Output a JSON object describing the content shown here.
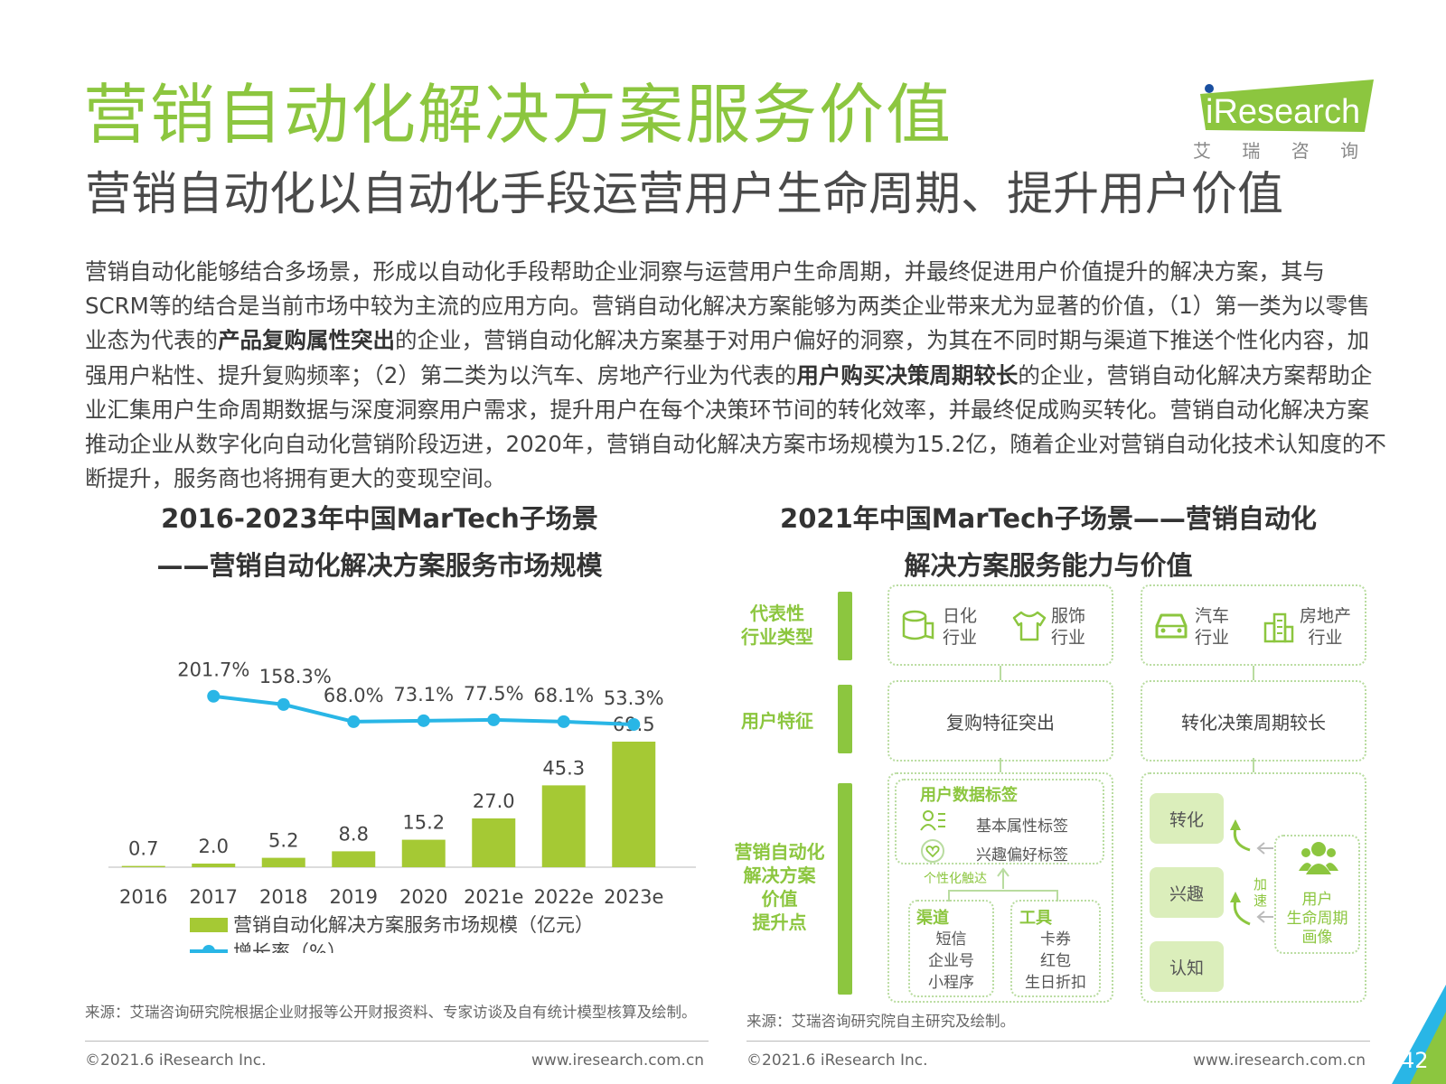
{
  "page": {
    "title": "营销自动化解决方案服务价值",
    "subtitle": "营销自动化以自动化手段运营用户生命周期、提升用户价值",
    "page_number": "42"
  },
  "logo": {
    "brand": "iResearch",
    "cn": "艾 瑞 咨 询"
  },
  "body": {
    "p1": "营销自动化能够结合多场景，形成以自动化手段帮助企业洞察与运营用户生命周期，并最终促进用户价值提升的解决方案，其与SCRM等的结合是当前市场中较为主流的应用方向。营销自动化解决方案能够为两类企业带来尤为显著的价值，（1）第一类为以零售业态为代表的",
    "b1": "产品复购属性突出",
    "p2": "的企业，营销自动化解决方案基于对用户偏好的洞察，为其在不同时期与渠道下推送个性化内容，加强用户粘性、提升复购频率；（2）第二类为以汽车、房地产行业为代表的",
    "b2": "用户购买决策周期较长",
    "p3": "的企业，营销自动化解决方案帮助企业汇集用户生命周期数据与深度洞察用户需求，提升用户在每个决策环节间的转化效率，并最终促成购买转化。营销自动化解决方案推动企业从数字化向自动化营销阶段迈进，2020年，营销自动化解决方案市场规模为15.2亿，随着企业对营销自动化技术认知度的不断提升，服务商也将拥有更大的变现空间。"
  },
  "chart_data": {
    "type": "bar",
    "title_line1": "2016-2023年中国MarTech子场景",
    "title_line2": "——营销自动化解决方案服务市场规模",
    "categories": [
      "2016",
      "2017",
      "2018",
      "2019",
      "2020",
      "2021e",
      "2022e",
      "2023e"
    ],
    "series": [
      {
        "name": "营销自动化解决方案服务市场规模（亿元）",
        "type": "bar",
        "values": [
          0.7,
          2.0,
          5.2,
          8.8,
          15.2,
          27.0,
          45.3,
          69.5
        ],
        "labels": [
          "0.7",
          "2.0",
          "5.2",
          "8.8",
          "15.2",
          "27.0",
          "45.3",
          "69.5"
        ],
        "color": "#a5c934"
      },
      {
        "name": "增长率（%）",
        "type": "line",
        "values": [
          null,
          201.7,
          158.3,
          68.0,
          73.1,
          77.5,
          68.1,
          53.3
        ],
        "labels": [
          "",
          "201.7%",
          "158.3%",
          "68.0%",
          "73.1%",
          "77.5%",
          "68.1%",
          "53.3%"
        ],
        "color": "#29b6e6"
      }
    ],
    "legend_position": "bottom"
  },
  "diagram": {
    "title_line1": "2021年中国MarTech子场景——营销自动化",
    "title_line2": "解决方案服务能力与价值",
    "sidebar": [
      "代表性\n行业类型",
      "用户特征",
      "营销自动化\n解决方案\n价值\n提升点"
    ],
    "industries_left": [
      {
        "icon": "tissue-icon",
        "label": "日化\n行业"
      },
      {
        "icon": "shirt-icon",
        "label": "服饰\n行业"
      }
    ],
    "industries_right": [
      {
        "icon": "car-icon",
        "label": "汽车\n行业"
      },
      {
        "icon": "building-icon",
        "label": "房地产\n行业"
      }
    ],
    "trait_left": "复购特征突出",
    "trait_right": "转化决策周期较长",
    "data_tags_title": "用户数据标签",
    "tag1": "基本属性标签",
    "tag2": "兴趣偏好标签",
    "reach": "个性化触达",
    "channel_title": "渠道",
    "channels": "短信\n企业号\n小程序",
    "tool_title": "工具",
    "tools": "卡券\n红包\n生日折扣",
    "stages": [
      "转化",
      "兴趣",
      "认知"
    ],
    "accelerate": "加\n速",
    "persona": "用户\n生命周期\n画像"
  },
  "sources": {
    "left": "来源：艾瑞咨询研究院根据企业财报等公开财报资料、专家访谈及自有统计模型核算及绘制。",
    "right": "来源：艾瑞咨询研究院自主研究及绘制。"
  },
  "footer": {
    "copyright": "©2021.6 iResearch Inc.",
    "website": "www.iresearch.com.cn"
  },
  "colors": {
    "accent": "#8cc63f",
    "bar": "#a5c934",
    "line": "#29b6e6"
  }
}
